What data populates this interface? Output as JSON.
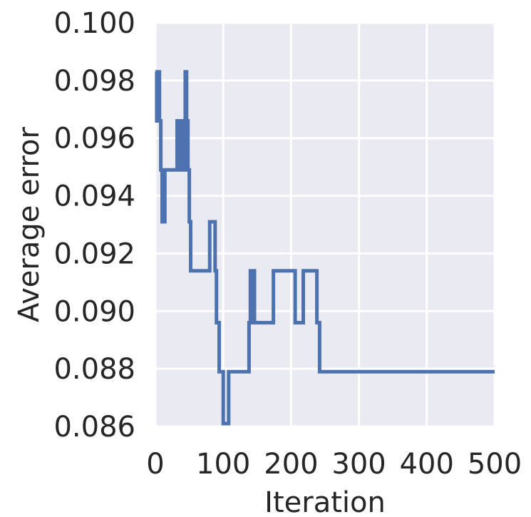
{
  "chart_data": {
    "type": "line",
    "title": "",
    "xlabel": "Iteration",
    "ylabel": "Average error",
    "xlim": [
      0,
      500
    ],
    "ylim": [
      0.086,
      0.1
    ],
    "x_ticks": [
      "0",
      "100",
      "200",
      "300",
      "400",
      "500"
    ],
    "y_ticks": [
      "0.086",
      "0.088",
      "0.090",
      "0.092",
      "0.094",
      "0.096",
      "0.098",
      "0.100"
    ],
    "grid": true,
    "background_color": "#EAEAF2",
    "grid_color": "#FFFFFF",
    "series": [
      {
        "color": "#4C72B0",
        "x": [
          0,
          2,
          2,
          4,
          4,
          6,
          6,
          8,
          8,
          10,
          10,
          12,
          12,
          14,
          14,
          32,
          32,
          36,
          36,
          40,
          40,
          42,
          42,
          44,
          44,
          46,
          46,
          48,
          48,
          50,
          50,
          52,
          52,
          54,
          54,
          56,
          56,
          58,
          58,
          60,
          60,
          80,
          80,
          88,
          88,
          90,
          90,
          94,
          94,
          100,
          100,
          108,
          108,
          112,
          112,
          120,
          120,
          138,
          138,
          140,
          140,
          142,
          142,
          144,
          144,
          146,
          146,
          174,
          174,
          206,
          206,
          218,
          218,
          238,
          238,
          242,
          242,
          500
        ],
        "y": [
          0.0983,
          0.0983,
          0.0966,
          0.0966,
          0.0983,
          0.0983,
          0.0966,
          0.0966,
          0.0949,
          0.0949,
          0.0931,
          0.0931,
          0.0931,
          0.0931,
          0.0949,
          0.0949,
          0.0966,
          0.0966,
          0.0949,
          0.0949,
          0.0966,
          0.0966,
          0.0949,
          0.0949,
          0.0983,
          0.0983,
          0.0966,
          0.0966,
          0.0949,
          0.0949,
          0.0931,
          0.0931,
          0.0914,
          0.0914,
          0.0914,
          0.0914,
          0.0914,
          0.0914,
          0.0914,
          0.0914,
          0.0914,
          0.0914,
          0.0931,
          0.0931,
          0.0914,
          0.0914,
          0.0896,
          0.0896,
          0.0879,
          0.0879,
          0.0861,
          0.0861,
          0.0879,
          0.0879,
          0.0879,
          0.0879,
          0.0879,
          0.0879,
          0.0896,
          0.0896,
          0.0914,
          0.0914,
          0.0896,
          0.0896,
          0.0914,
          0.0914,
          0.0896,
          0.0896,
          0.0914,
          0.0914,
          0.0896,
          0.0896,
          0.0914,
          0.0914,
          0.0896,
          0.0896,
          0.0879,
          0.0879
        ]
      }
    ]
  }
}
